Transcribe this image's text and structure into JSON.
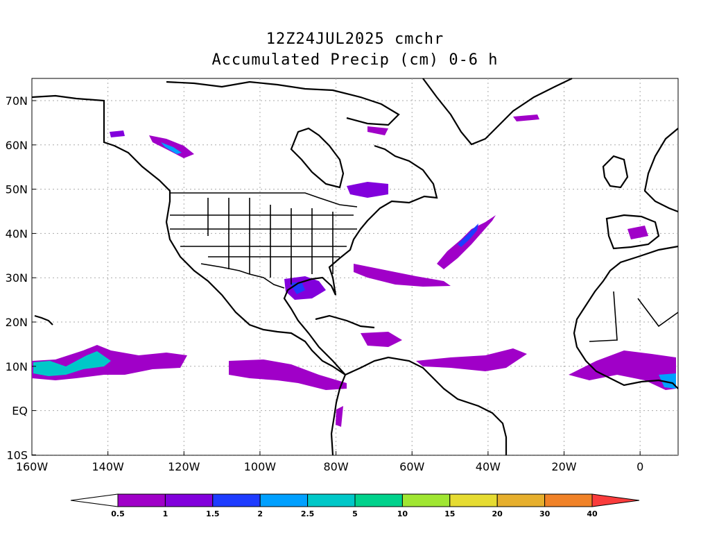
{
  "title_line1": "12Z24JUL2025 cmchr",
  "title_line2": "Accumulated Precip (cm) 0-6 h",
  "lat_labels": [
    "70N",
    "60N",
    "50N",
    "40N",
    "30N",
    "20N",
    "10N",
    "EQ",
    "10S"
  ],
  "lon_labels": [
    "160W",
    "140W",
    "120W",
    "100W",
    "80W",
    "60W",
    "40W",
    "20W",
    "0"
  ],
  "colorbar": {
    "colors": [
      "#ffffff",
      "#a000c8",
      "#8200dc",
      "#1e3cff",
      "#00a0ff",
      "#00c8c8",
      "#00d28c",
      "#a0e632",
      "#e6dc32",
      "#e6af2d",
      "#f08228",
      "#fa3c3c"
    ],
    "labels": [
      "0.5",
      "1",
      "1.5",
      "2",
      "2.5",
      "5",
      "10",
      "15",
      "20",
      "30",
      "40"
    ]
  },
  "colors": {
    "coast": "#000000",
    "grid": "#aaaaaa",
    "precip_light": "#a000c8",
    "precip_mid": "#8200dc",
    "precip_heavy": "#00c8c8"
  }
}
